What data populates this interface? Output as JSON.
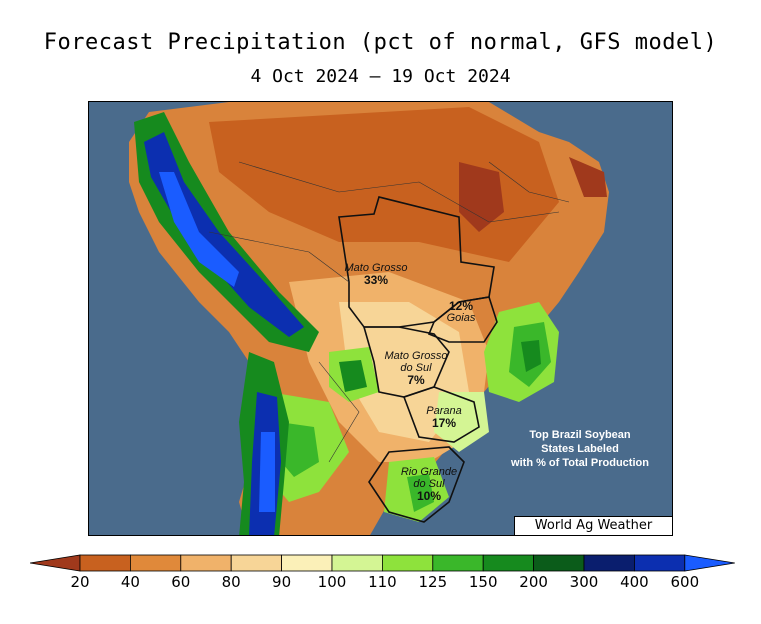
{
  "title": "Forecast Precipitation (pct of normal, GFS model)",
  "date_range": "4 Oct 2024 — 19 Oct 2024",
  "states": [
    {
      "name": "Mato Grosso",
      "pct": "33%"
    },
    {
      "name": "Goias",
      "pct": "12%"
    },
    {
      "name": "Mato Grosso do Sul",
      "pct": "7%"
    },
    {
      "name": "Parana",
      "pct": "17%"
    },
    {
      "name": "Rio Grande do Sul",
      "pct": "10%"
    }
  ],
  "note": [
    "Top Brazil Soybean",
    "States Labeled",
    "with % of Total Production"
  ],
  "credit": "World Ag Weather",
  "legend": {
    "ticks": [
      "20",
      "40",
      "60",
      "80",
      "90",
      "100",
      "110",
      "125",
      "150",
      "200",
      "300",
      "400",
      "600"
    ],
    "colors": [
      "#a0391c",
      "#c8611f",
      "#e0893a",
      "#f0b26a",
      "#f7d597",
      "#fbf0b8",
      "#d4f594",
      "#8ee23c",
      "#3ab72a",
      "#168a1e",
      "#0b5c1a",
      "#0a1e6e",
      "#0c2fb0",
      "#1a5cff"
    ]
  }
}
